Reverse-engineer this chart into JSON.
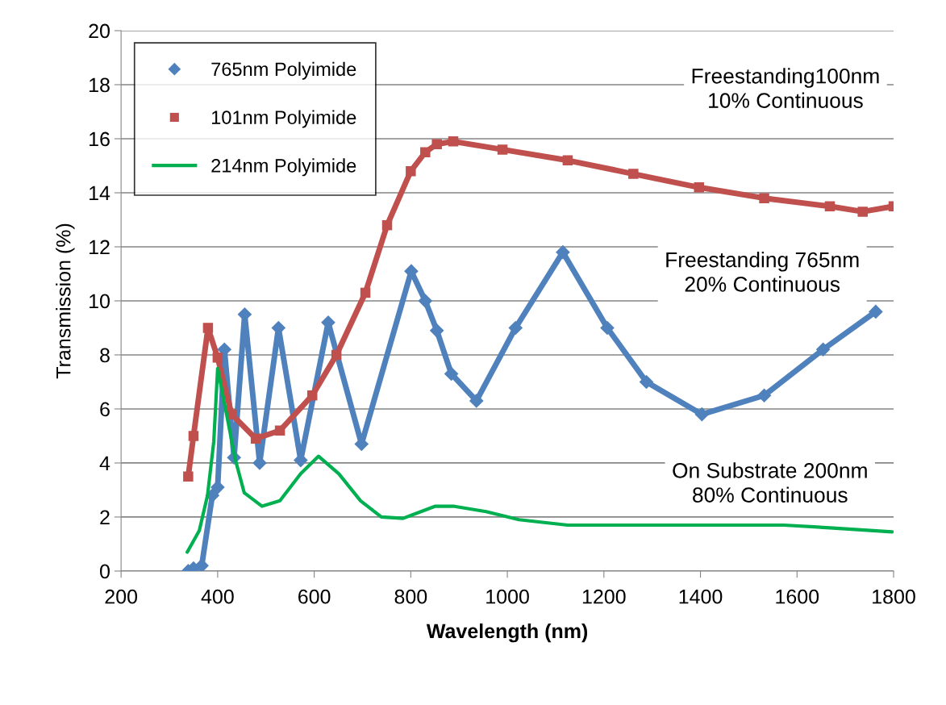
{
  "chart_data": {
    "type": "line",
    "xlabel": "Wavelength (nm)",
    "ylabel": "Transmission (%)",
    "xlim": [
      200,
      1800
    ],
    "xticks": [
      200,
      400,
      600,
      800,
      1000,
      1200,
      1400,
      1600,
      1800
    ],
    "ylim": [
      0,
      20
    ],
    "yticks": [
      0,
      2,
      4,
      6,
      8,
      10,
      12,
      14,
      16,
      18,
      20
    ],
    "grid": "y",
    "legend": "top left",
    "annotations": [
      "Freestanding100nm\n10% Continuous",
      "Freestanding 765nm\n20% Continuous",
      "On Substrate 200nm\n80% Continuous"
    ],
    "series": [
      {
        "name": "765nm Polyimide",
        "color": "#4f81bd",
        "marker": "diamond",
        "x": [
          339,
          350,
          367,
          389,
          400,
          414,
          434,
          456,
          487,
          526,
          572,
          629,
          698,
          801,
          830,
          854,
          884,
          936,
          1017,
          1115,
          1207,
          1288,
          1403,
          1532,
          1654,
          1763
        ],
        "values": [
          0,
          0.1,
          0.2,
          2.8,
          3.1,
          8.2,
          4.2,
          9.5,
          4.0,
          9.0,
          4.1,
          9.2,
          4.7,
          11.1,
          10.0,
          8.9,
          7.3,
          6.3,
          9.0,
          11.8,
          9.0,
          7.0,
          5.8,
          6.5,
          8.2,
          9.6
        ]
      },
      {
        "name": "101nm Polyimide",
        "color": "#c0504d",
        "marker": "square",
        "x": [
          339,
          350,
          380,
          400,
          429,
          479,
          529,
          596,
          646,
          706,
          751,
          800,
          830,
          854,
          888,
          990,
          1125,
          1261,
          1397,
          1532,
          1668,
          1736,
          1800
        ],
        "values": [
          3.5,
          5.0,
          9.0,
          7.9,
          5.8,
          4.9,
          5.2,
          6.5,
          8.0,
          10.3,
          12.8,
          14.8,
          15.5,
          15.8,
          15.9,
          15.6,
          15.2,
          14.7,
          14.2,
          13.8,
          13.5,
          13.3,
          13.5
        ]
      },
      {
        "name": "214nm Polyimide",
        "color": "#00b050",
        "marker": "none",
        "x": [
          337,
          362,
          379,
          392,
          400,
          437,
          455,
          492,
          529,
          572,
          609,
          651,
          696,
          739,
          784,
          851,
          888,
          956,
          1024,
          1125,
          1261,
          1397,
          1573,
          1668,
          1797
        ],
        "values": [
          0.7,
          1.5,
          2.8,
          4.8,
          7.5,
          4.1,
          2.9,
          2.4,
          2.6,
          3.6,
          4.25,
          3.6,
          2.6,
          2.0,
          1.95,
          2.4,
          2.4,
          2.2,
          1.9,
          1.7,
          1.7,
          1.7,
          1.7,
          1.6,
          1.45
        ]
      }
    ]
  }
}
